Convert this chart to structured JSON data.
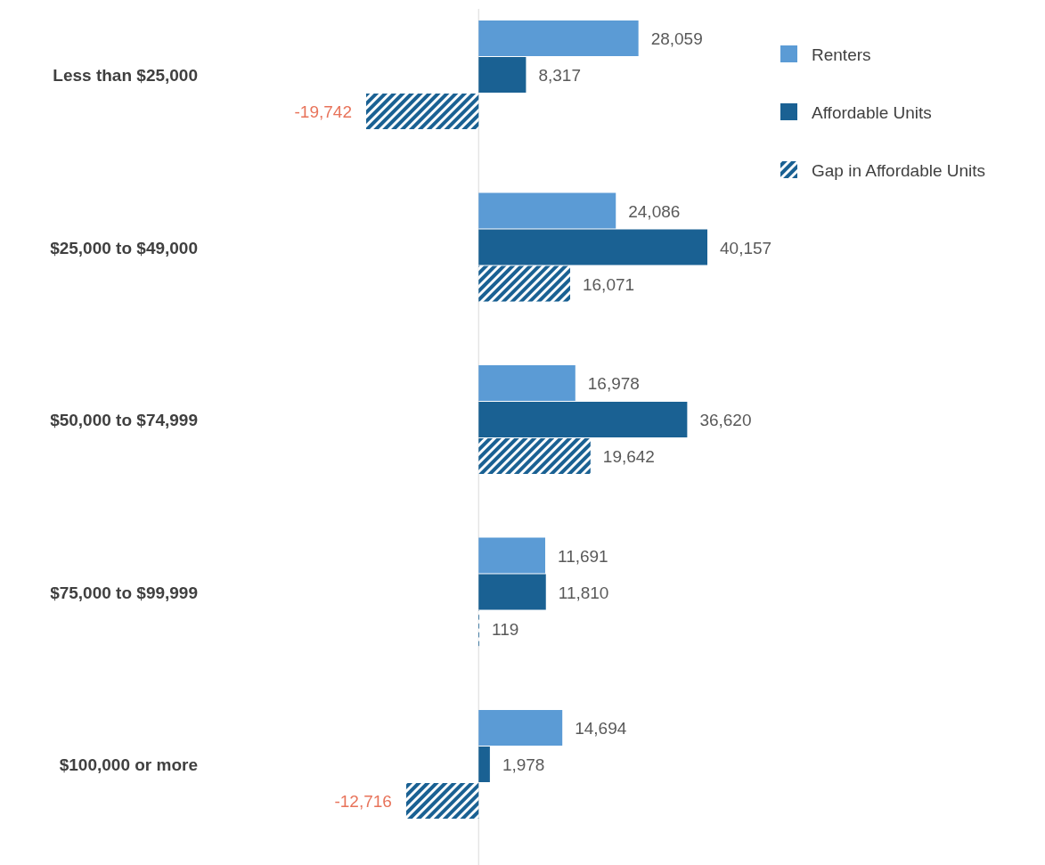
{
  "chart_data": {
    "type": "bar",
    "orientation": "horizontal",
    "categories": [
      "Less than $25,000",
      "$25,000 to $49,000",
      "$50,000 to $74,999",
      "$75,000 to $99,999",
      "$100,000 or more"
    ],
    "series": [
      {
        "name": "Renters",
        "color": "#5b9bd5",
        "values": [
          28059,
          24086,
          16978,
          11691,
          14694
        ],
        "value_labels": [
          "28,059",
          "24,086",
          "16,978",
          "11,691",
          "14,694"
        ]
      },
      {
        "name": "Affordable Units",
        "color": "#1a6193",
        "values": [
          8317,
          40157,
          36620,
          11810,
          1978
        ],
        "value_labels": [
          "8,317",
          "40,157",
          "36,620",
          "11,810",
          "1,978"
        ]
      },
      {
        "name": "Gap in Affordable Units",
        "color": "#1a6193",
        "values": [
          -19742,
          16071,
          19642,
          119,
          -12716
        ],
        "value_labels": [
          "-19,742",
          "16,071",
          "19,642",
          "119",
          "-12,716"
        ]
      }
    ],
    "legend": "top right"
  }
}
